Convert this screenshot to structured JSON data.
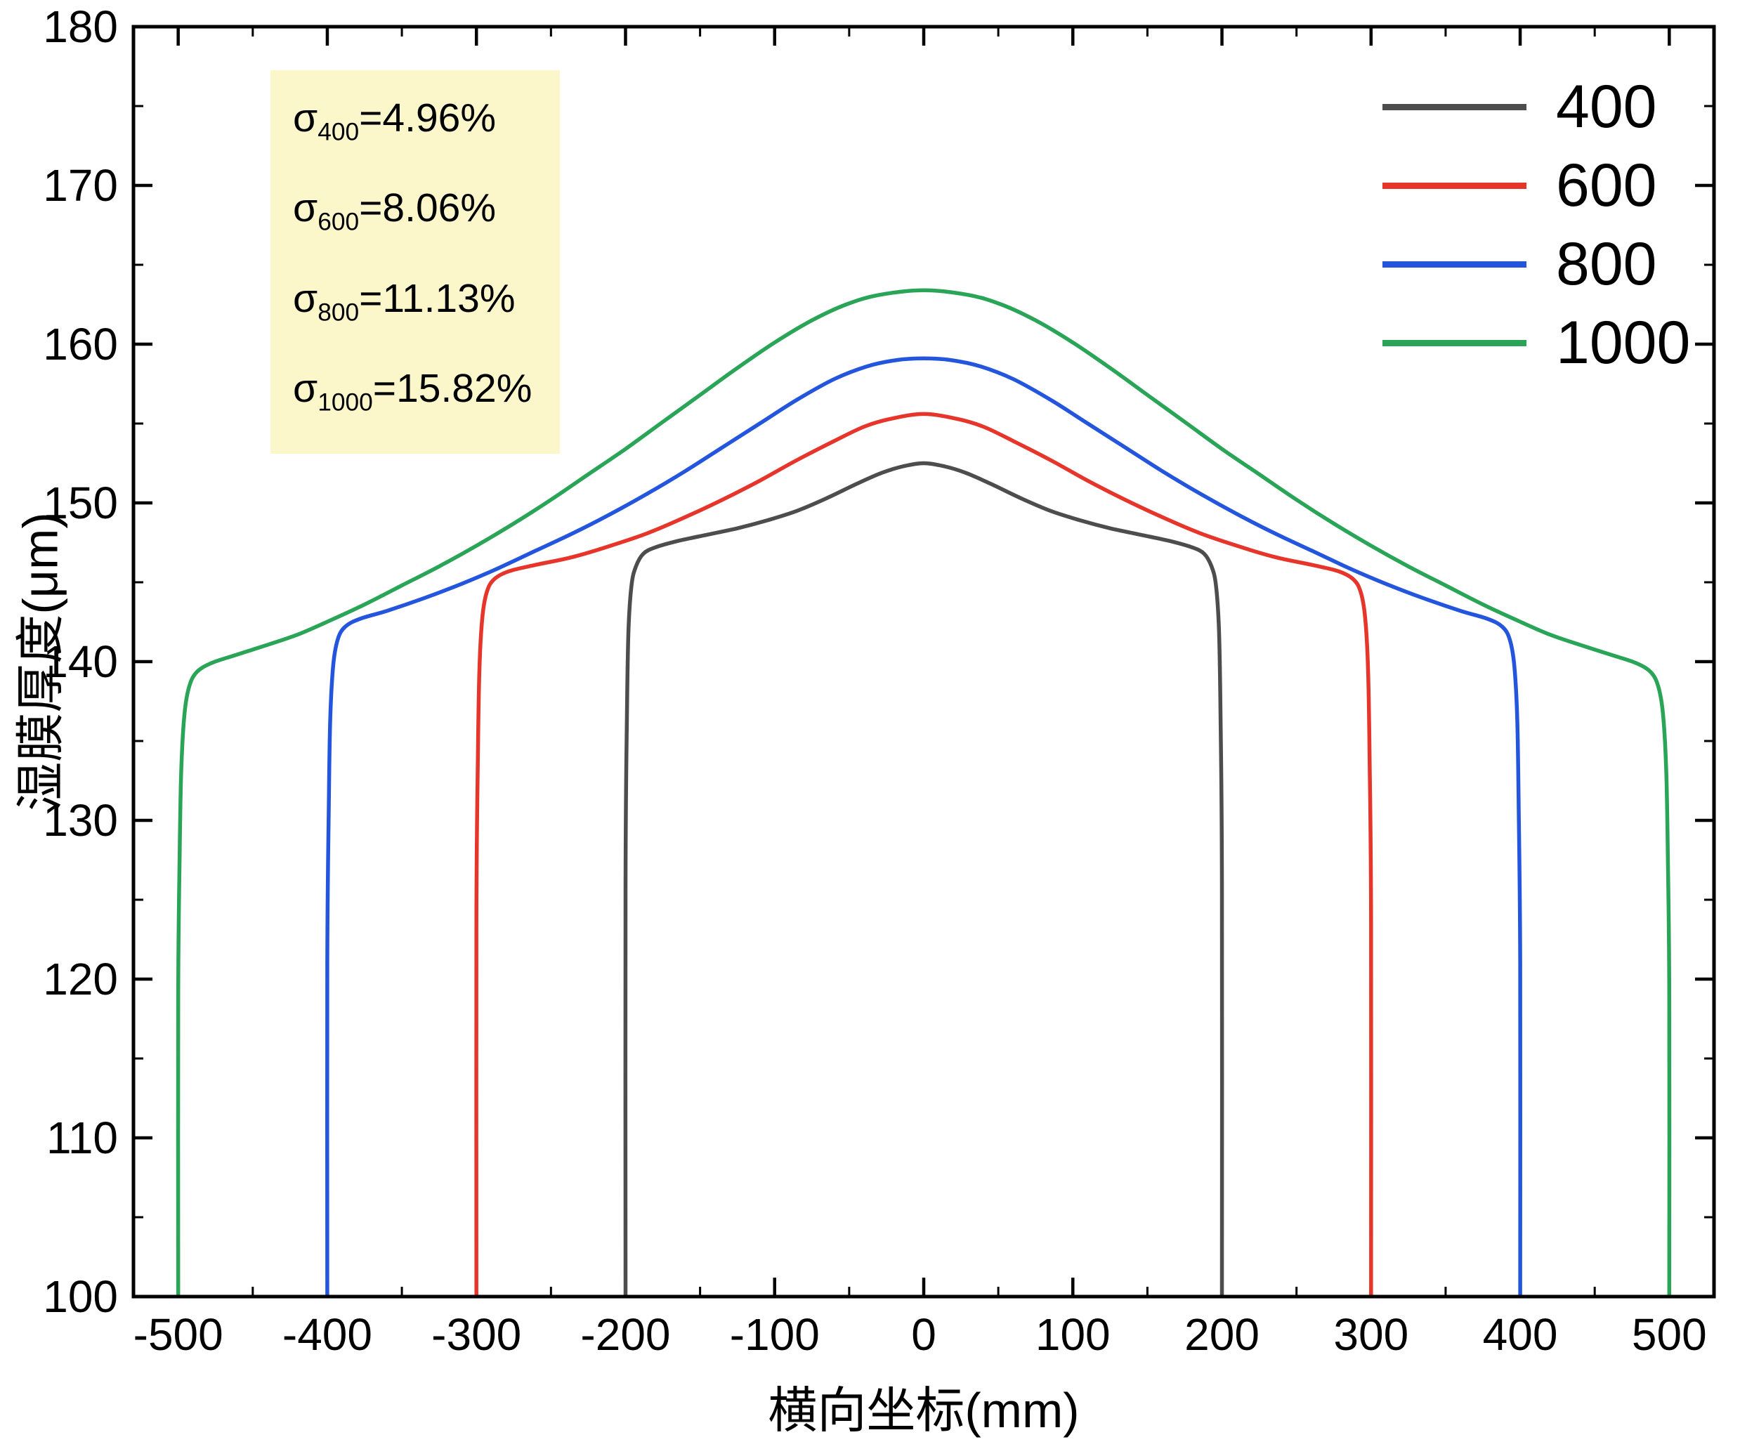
{
  "figure": {
    "background": "#ffffff",
    "annotation_box_color": "#FBF7CB"
  },
  "chart_data": {
    "type": "line",
    "title": "",
    "xlabel": "横向坐标(mm)",
    "ylabel": "湿膜厚度(μm)",
    "xlim": [
      -530,
      530
    ],
    "ylim": [
      100,
      180
    ],
    "x_ticks": [
      -500,
      -400,
      -300,
      -200,
      -100,
      0,
      100,
      200,
      300,
      400,
      500
    ],
    "y_ticks": [
      100,
      110,
      120,
      130,
      140,
      150,
      160,
      170,
      180
    ],
    "x_minor_step": 50,
    "y_minor_step": 5,
    "grid": false,
    "legend_position": "top-right",
    "annotations": [
      {
        "symbol": "σ",
        "sub": "400",
        "value": "4.96%"
      },
      {
        "symbol": "σ",
        "sub": "600",
        "value": "8.06%"
      },
      {
        "symbol": "σ",
        "sub": "800",
        "value": "11.13%"
      },
      {
        "symbol": "σ",
        "sub": "1000",
        "value": "15.82%"
      }
    ],
    "series": [
      {
        "name": "400",
        "color": "#4d4d4d",
        "points": [
          [
            -200,
            100
          ],
          [
            -200,
            126
          ],
          [
            -199,
            137
          ],
          [
            -198,
            142
          ],
          [
            -196,
            144.8
          ],
          [
            -193,
            146
          ],
          [
            -188,
            146.8
          ],
          [
            -180,
            147.2
          ],
          [
            -165,
            147.6
          ],
          [
            -145,
            148
          ],
          [
            -125,
            148.4
          ],
          [
            -105,
            148.9
          ],
          [
            -85,
            149.5
          ],
          [
            -65,
            150.3
          ],
          [
            -45,
            151.2
          ],
          [
            -28,
            151.9
          ],
          [
            -14,
            152.3
          ],
          [
            0,
            152.5
          ],
          [
            14,
            152.3
          ],
          [
            28,
            151.9
          ],
          [
            45,
            151.2
          ],
          [
            65,
            150.3
          ],
          [
            85,
            149.5
          ],
          [
            105,
            148.9
          ],
          [
            125,
            148.4
          ],
          [
            145,
            148
          ],
          [
            165,
            147.6
          ],
          [
            180,
            147.2
          ],
          [
            188,
            146.8
          ],
          [
            193,
            146
          ],
          [
            196,
            144.8
          ],
          [
            198,
            142
          ],
          [
            199,
            137
          ],
          [
            200,
            126
          ],
          [
            200,
            100
          ]
        ]
      },
      {
        "name": "600",
        "color": "#e6352b",
        "points": [
          [
            -300,
            100
          ],
          [
            -300,
            124
          ],
          [
            -299,
            134
          ],
          [
            -298,
            139.5
          ],
          [
            -296,
            142.8
          ],
          [
            -293,
            144.4
          ],
          [
            -288,
            145.2
          ],
          [
            -278,
            145.7
          ],
          [
            -260,
            146.1
          ],
          [
            -235,
            146.6
          ],
          [
            -210,
            147.3
          ],
          [
            -185,
            148.1
          ],
          [
            -160,
            149.1
          ],
          [
            -135,
            150.2
          ],
          [
            -110,
            151.4
          ],
          [
            -85,
            152.7
          ],
          [
            -60,
            153.9
          ],
          [
            -40,
            154.8
          ],
          [
            -22,
            155.3
          ],
          [
            0,
            155.6
          ],
          [
            22,
            155.3
          ],
          [
            40,
            154.8
          ],
          [
            60,
            153.9
          ],
          [
            85,
            152.7
          ],
          [
            110,
            151.4
          ],
          [
            135,
            150.2
          ],
          [
            160,
            149.1
          ],
          [
            185,
            148.1
          ],
          [
            210,
            147.3
          ],
          [
            235,
            146.6
          ],
          [
            260,
            146.1
          ],
          [
            278,
            145.7
          ],
          [
            288,
            145.2
          ],
          [
            293,
            144.4
          ],
          [
            296,
            142.8
          ],
          [
            298,
            139.5
          ],
          [
            299,
            134
          ],
          [
            300,
            124
          ],
          [
            300,
            100
          ]
        ]
      },
      {
        "name": "800",
        "color": "#2456dd",
        "points": [
          [
            -400,
            100
          ],
          [
            -400,
            121
          ],
          [
            -399,
            131
          ],
          [
            -398,
            136.5
          ],
          [
            -396,
            139.8
          ],
          [
            -393,
            141.4
          ],
          [
            -388,
            142.2
          ],
          [
            -378,
            142.7
          ],
          [
            -360,
            143.2
          ],
          [
            -335,
            144
          ],
          [
            -310,
            144.9
          ],
          [
            -285,
            145.9
          ],
          [
            -260,
            147
          ],
          [
            -235,
            148.1
          ],
          [
            -210,
            149.3
          ],
          [
            -185,
            150.6
          ],
          [
            -160,
            152
          ],
          [
            -135,
            153.5
          ],
          [
            -110,
            155
          ],
          [
            -85,
            156.5
          ],
          [
            -60,
            157.8
          ],
          [
            -38,
            158.6
          ],
          [
            -18,
            159
          ],
          [
            0,
            159.1
          ],
          [
            18,
            159
          ],
          [
            38,
            158.6
          ],
          [
            60,
            157.8
          ],
          [
            85,
            156.5
          ],
          [
            110,
            155
          ],
          [
            135,
            153.5
          ],
          [
            160,
            152
          ],
          [
            185,
            150.6
          ],
          [
            210,
            149.3
          ],
          [
            235,
            148.1
          ],
          [
            260,
            147
          ],
          [
            285,
            145.9
          ],
          [
            310,
            144.9
          ],
          [
            335,
            144
          ],
          [
            360,
            143.2
          ],
          [
            378,
            142.7
          ],
          [
            388,
            142.2
          ],
          [
            393,
            141.4
          ],
          [
            396,
            139.8
          ],
          [
            398,
            136.5
          ],
          [
            399,
            131
          ],
          [
            400,
            121
          ],
          [
            400,
            100
          ]
        ]
      },
      {
        "name": "1000",
        "color": "#2aa558",
        "points": [
          [
            -500,
            100
          ],
          [
            -500,
            119
          ],
          [
            -499,
            128
          ],
          [
            -498,
            133
          ],
          [
            -496,
            136.5
          ],
          [
            -493,
            138.3
          ],
          [
            -488,
            139.3
          ],
          [
            -478,
            139.9
          ],
          [
            -462,
            140.4
          ],
          [
            -442,
            141
          ],
          [
            -420,
            141.7
          ],
          [
            -398,
            142.6
          ],
          [
            -375,
            143.6
          ],
          [
            -350,
            144.8
          ],
          [
            -325,
            146
          ],
          [
            -300,
            147.3
          ],
          [
            -275,
            148.7
          ],
          [
            -250,
            150.2
          ],
          [
            -225,
            151.8
          ],
          [
            -200,
            153.4
          ],
          [
            -175,
            155.1
          ],
          [
            -150,
            156.8
          ],
          [
            -125,
            158.5
          ],
          [
            -100,
            160.1
          ],
          [
            -75,
            161.5
          ],
          [
            -52,
            162.5
          ],
          [
            -30,
            163.1
          ],
          [
            0,
            163.4
          ],
          [
            30,
            163.1
          ],
          [
            52,
            162.5
          ],
          [
            75,
            161.5
          ],
          [
            100,
            160.1
          ],
          [
            125,
            158.5
          ],
          [
            150,
            156.8
          ],
          [
            175,
            155.1
          ],
          [
            200,
            153.4
          ],
          [
            225,
            151.8
          ],
          [
            250,
            150.2
          ],
          [
            275,
            148.7
          ],
          [
            300,
            147.3
          ],
          [
            325,
            146
          ],
          [
            350,
            144.8
          ],
          [
            375,
            143.6
          ],
          [
            398,
            142.6
          ],
          [
            420,
            141.7
          ],
          [
            442,
            141
          ],
          [
            462,
            140.4
          ],
          [
            478,
            139.9
          ],
          [
            488,
            139.3
          ],
          [
            493,
            138.3
          ],
          [
            496,
            136.5
          ],
          [
            498,
            133
          ],
          [
            499,
            128
          ],
          [
            500,
            119
          ],
          [
            500,
            100
          ]
        ]
      }
    ]
  }
}
